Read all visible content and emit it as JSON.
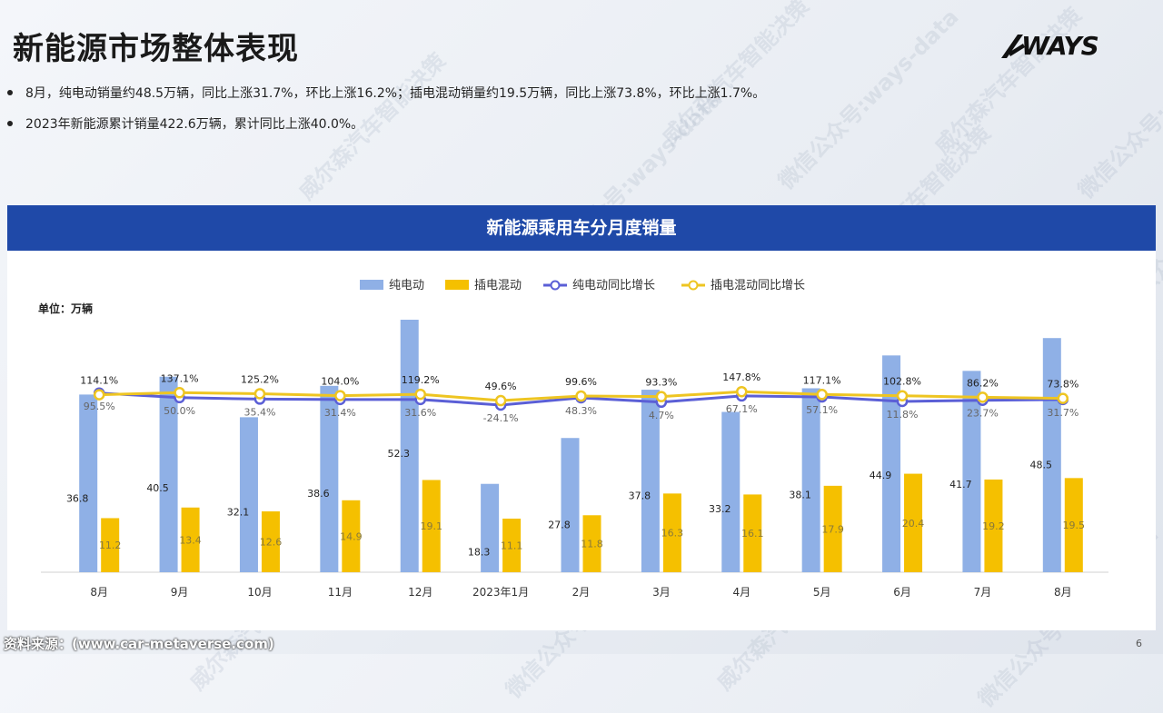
{
  "header": {
    "title": "新能源市场整体表现",
    "logo_text": "WAYS"
  },
  "bullets": [
    "8月，纯电动销量约48.5万辆，同比上涨31.7%，环比上涨16.2%；插电混动销量约19.5万辆，同比上涨73.8%，环比上涨1.7%。",
    "2023年新能源累计销量422.6万辆，累计同比上涨40.0%。"
  ],
  "watermark": [
    "威尔森汽车智能决策",
    "微信公众号:ways-data"
  ],
  "colors": {
    "header_blue": "#1f49a8",
    "bev": "#8fb0e6",
    "phev": "#f5c000",
    "bev_growth": "#5b5fd6",
    "phev_growth": "#eec522"
  },
  "chart_data": {
    "type": "bar",
    "title": "新能源乘用车分月度销量",
    "unit_label": "单位：万辆",
    "categories": [
      "8月",
      "9月",
      "10月",
      "11月",
      "12月",
      "2023年1月",
      "2月",
      "3月",
      "4月",
      "5月",
      "6月",
      "7月",
      "8月"
    ],
    "series": [
      {
        "name": "纯电动",
        "kind": "bar",
        "values": [
          36.8,
          40.5,
          32.1,
          38.6,
          52.3,
          18.3,
          27.8,
          37.8,
          33.2,
          38.1,
          44.9,
          41.7,
          48.5
        ]
      },
      {
        "name": "插电混动",
        "kind": "bar",
        "values": [
          11.2,
          13.4,
          12.6,
          14.9,
          19.1,
          11.1,
          11.8,
          16.3,
          16.1,
          17.9,
          20.4,
          19.2,
          19.5
        ]
      },
      {
        "name": "纯电动同比增长",
        "kind": "line",
        "values": [
          95.5,
          50.0,
          35.4,
          31.4,
          31.6,
          -24.1,
          48.3,
          4.7,
          67.1,
          57.1,
          11.8,
          23.7,
          31.7
        ],
        "unit": "%"
      },
      {
        "name": "插电混动同比增长",
        "kind": "line",
        "values": [
          114.1,
          137.1,
          125.2,
          104.0,
          119.2,
          49.6,
          99.6,
          93.3,
          147.8,
          117.1,
          102.8,
          86.2,
          73.8
        ],
        "unit": "%"
      }
    ],
    "legend_position": "top-center",
    "grid": false
  },
  "footer": {
    "source": "资料来源：(www.car-metaverse.com)",
    "page_number": "6"
  }
}
